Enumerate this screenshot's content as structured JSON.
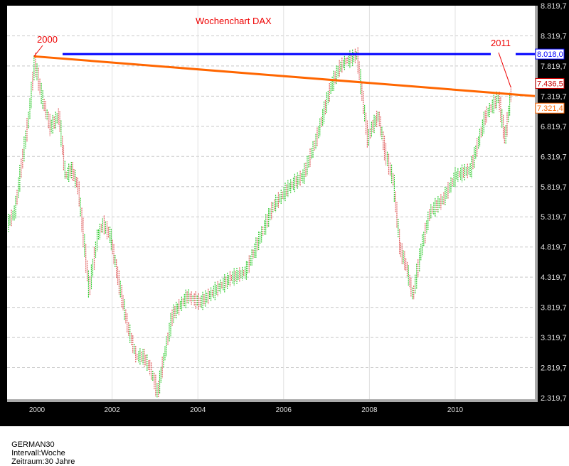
{
  "chart_data": {
    "type": "line",
    "title": "Wochenchart DAX",
    "xlim": [
      1999.55,
      2011.85
    ],
    "ylim": [
      2319.7,
      8819.7
    ],
    "x_ticks": [
      "2000",
      "2002",
      "2004",
      "2006",
      "2008",
      "2010"
    ],
    "y_ticks": [
      "2.319,7",
      "2.819,7",
      "3.319,7",
      "3.819,7",
      "4.319,7",
      "4.819,7",
      "5.319,7",
      "5.819,7",
      "6.319,7",
      "6.819,7",
      "7.319,7",
      "7.819,7",
      "8.319,7",
      "8.819,7"
    ],
    "grid": true,
    "series": [
      {
        "x": [
          1999.55,
          1999.72,
          1999.88,
          2000.05,
          2000.18,
          2000.35,
          2000.55,
          2000.75,
          2000.9,
          2001.05,
          2001.2,
          2001.45,
          2001.65,
          2001.78,
          2001.95,
          2002.1,
          2002.35,
          2002.55,
          2002.72,
          2002.88,
          2003.05,
          2003.2,
          2003.4,
          2003.75,
          2004.05,
          2004.4,
          2004.75,
          2005.1,
          2005.45,
          2005.75,
          2006.1,
          2006.45,
          2006.75,
          2007.1,
          2007.3,
          2007.45,
          2007.7,
          2007.95,
          2008.05,
          2008.2,
          2008.35,
          2008.55,
          2008.7,
          2008.85,
          2009.0,
          2009.2,
          2009.4,
          2009.7,
          2010.0,
          2010.35,
          2010.7,
          2011.0,
          2011.15,
          2011.3
        ],
        "y": [
          5200,
          5400,
          6200,
          7000,
          7900,
          7300,
          6800,
          7000,
          6000,
          6100,
          5800,
          4100,
          5000,
          5200,
          5000,
          4400,
          3500,
          3000,
          3000,
          2800,
          2400,
          3000,
          3700,
          4000,
          3900,
          4100,
          4300,
          4400,
          5000,
          5500,
          5800,
          6000,
          6600,
          7500,
          7800,
          7900,
          8000,
          6600,
          6800,
          7000,
          6400,
          5900,
          4800,
          4500,
          4000,
          4800,
          5400,
          5600,
          6000,
          6100,
          7000,
          7300,
          6600,
          7436.5
        ]
      }
    ],
    "annotations": {
      "start_label": "2000",
      "end_label": "2011",
      "resistance": {
        "value": 8018.0,
        "label": "8.018,0",
        "color": "#0000ff"
      },
      "last_price": {
        "value": 7436.5,
        "label": "7.436,5",
        "color": "#cc0000"
      },
      "trendline": {
        "from": [
          2000.18,
          7980
        ],
        "to_value": 7321.4,
        "label": "7.321,4",
        "color": "#ff6600"
      }
    },
    "up_color": "#33cc33",
    "down_color": "#e06060"
  },
  "status": {
    "symbol": "GERMAN30",
    "interval": "Intervall:Woche",
    "period": "Zeitraum:30 Jahre"
  }
}
